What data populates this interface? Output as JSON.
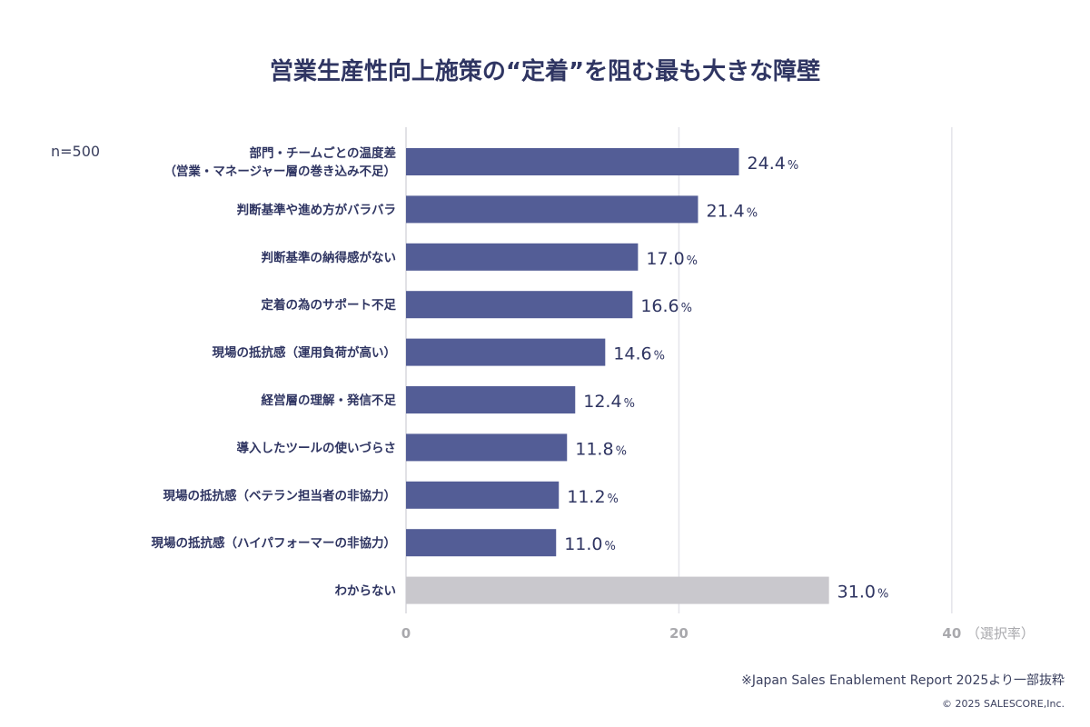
{
  "chart_data": {
    "type": "bar",
    "orientation": "horizontal",
    "title": "営業生産性向上施策の“定着”を阻む最も大きな障壁",
    "sample_note": "n=500",
    "categories": [
      [
        "部門・チームごとの温度差",
        "（営業・マネージャー層の巻き込み不足）"
      ],
      [
        "判断基準や進め方がバラバラ"
      ],
      [
        "判断基準の納得感がない"
      ],
      [
        "定着の為のサポート不足"
      ],
      [
        "現場の抵抗感（運用負荷が高い）"
      ],
      [
        "経営層の理解・発信不足"
      ],
      [
        "導入したツールの使いづらさ"
      ],
      [
        "現場の抵抗感（ベテラン担当者の非協力）"
      ],
      [
        "現場の抵抗感（ハイパフォーマーの非協力）"
      ],
      [
        "わからない"
      ]
    ],
    "values": [
      24.4,
      21.4,
      17.0,
      16.6,
      14.6,
      12.4,
      11.8,
      11.2,
      11.0,
      31.0
    ],
    "value_labels": [
      "24.4",
      "21.4",
      "17.0",
      "16.6",
      "14.6",
      "12.4",
      "11.8",
      "11.2",
      "11.0",
      "31.0"
    ],
    "value_unit": "%",
    "xticks": [
      "0",
      "20",
      "40"
    ],
    "xtick_values": [
      0,
      20,
      40
    ],
    "xlabel": "（選択率）",
    "xlim": [
      0,
      40
    ],
    "grid": true,
    "colors": {
      "bar": "#535d96",
      "bar_other": "#c9c8cd",
      "text": "#2f3562",
      "grid": "#e4e4ea",
      "tick": "#a9a9ad"
    }
  },
  "footer": {
    "source": "※Japan Sales Enablement Report 2025より一部抜粋",
    "copyright": "© 2025 SALESCORE,Inc."
  }
}
